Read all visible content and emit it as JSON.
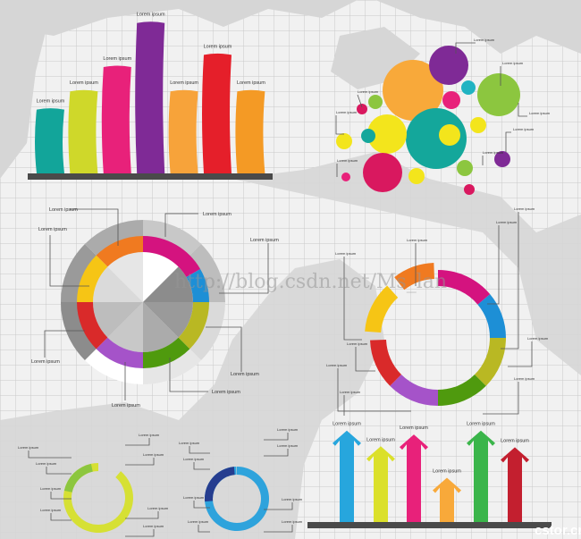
{
  "bar_infographic": {
    "labels": [
      "Lorem ipsum",
      "Lorem ipsum",
      "Lorem ipsum",
      "Lorem ipsum",
      "Lorem ipsum",
      "Lorem ipsum",
      "Lorem ipsum"
    ],
    "colors": [
      "#12a59a",
      "#cfd82a",
      "#e8217a",
      "#7f2a96",
      "#f7a33a",
      "#e51f2a",
      "#f49a25"
    ],
    "relative_heights": [
      0.42,
      0.54,
      0.7,
      0.99,
      0.54,
      0.78,
      0.54
    ]
  },
  "bubble_infographic": {
    "labels": [
      "Lorem ipsum",
      "Lorem ipsum",
      "Lorem ipsum",
      "Lorem ipsum",
      "Lorem ipsum",
      "Lorem ipsum",
      "Lorem ipsum",
      "Lorem ipsum"
    ],
    "colors": [
      "#f8a93a",
      "#7f2a96",
      "#14a79b",
      "#8cc63f",
      "#f3e51c",
      "#d9185f",
      "#21b3c2",
      "#e8217a"
    ]
  },
  "ring_left": {
    "labels": [
      "Lorem ipsum",
      "Lorem ipsum",
      "Lorem ipsum",
      "Lorem ipsum",
      "Lorem ipsum",
      "Lorem ipsum",
      "Lorem ipsum",
      "Lorem ipsum"
    ],
    "colors": [
      "#d4137f",
      "#1d8fd6",
      "#b9b823",
      "#4f9a0e",
      "#a553c9",
      "#d92a2a",
      "#f6c515",
      "#f07a20"
    ]
  },
  "ring_right": {
    "labels": [
      "Lorem ipsum",
      "Lorem ipsum",
      "Lorem ipsum",
      "Lorem ipsum",
      "Lorem ipsum",
      "Lorem ipsum",
      "Lorem ipsum",
      "Lorem ipsum",
      "Lorem ipsum"
    ],
    "colors": [
      "#d4137f",
      "#1d8fd6",
      "#b9b823",
      "#4f9a0e",
      "#a553c9",
      "#d92a2a",
      "#f6c515",
      "#f07a20"
    ]
  },
  "small_rings": {
    "left_labels": [
      "Lorem ipsum",
      "Lorem ipsum",
      "Lorem ipsum",
      "Lorem ipsum",
      "Lorem ipsum",
      "Lorem ipsum",
      "Lorem ipsum",
      "Lorem ipsum"
    ],
    "right_labels": [
      "Lorem ipsum",
      "Lorem ipsum",
      "Lorem ipsum",
      "Lorem ipsum",
      "Lorem ipsum",
      "Lorem ipsum",
      "Lorem ipsum",
      "Lorem ipsum"
    ],
    "left_colors": [
      "#d6e034",
      "#8cc63f"
    ],
    "right_colors": [
      "#2ea3dc",
      "#253d8f"
    ]
  },
  "arrow_infographic": {
    "labels": [
      "Lorem ipsum",
      "Lorem ipsum",
      "Lorem ipsum",
      "Lorem ipsum",
      "Lorem ipsum",
      "Lorem ipsum"
    ],
    "colors": [
      "#27a6dd",
      "#dbe02a",
      "#e8217a",
      "#f8a93a",
      "#3ab54a",
      "#c31f2f"
    ],
    "relative_heights": [
      0.93,
      0.77,
      0.89,
      0.45,
      0.93,
      0.76
    ]
  },
  "watermarks": {
    "blog_url": "http://blog.csdn.net/Ms_lan",
    "site": "cstor.cn"
  }
}
